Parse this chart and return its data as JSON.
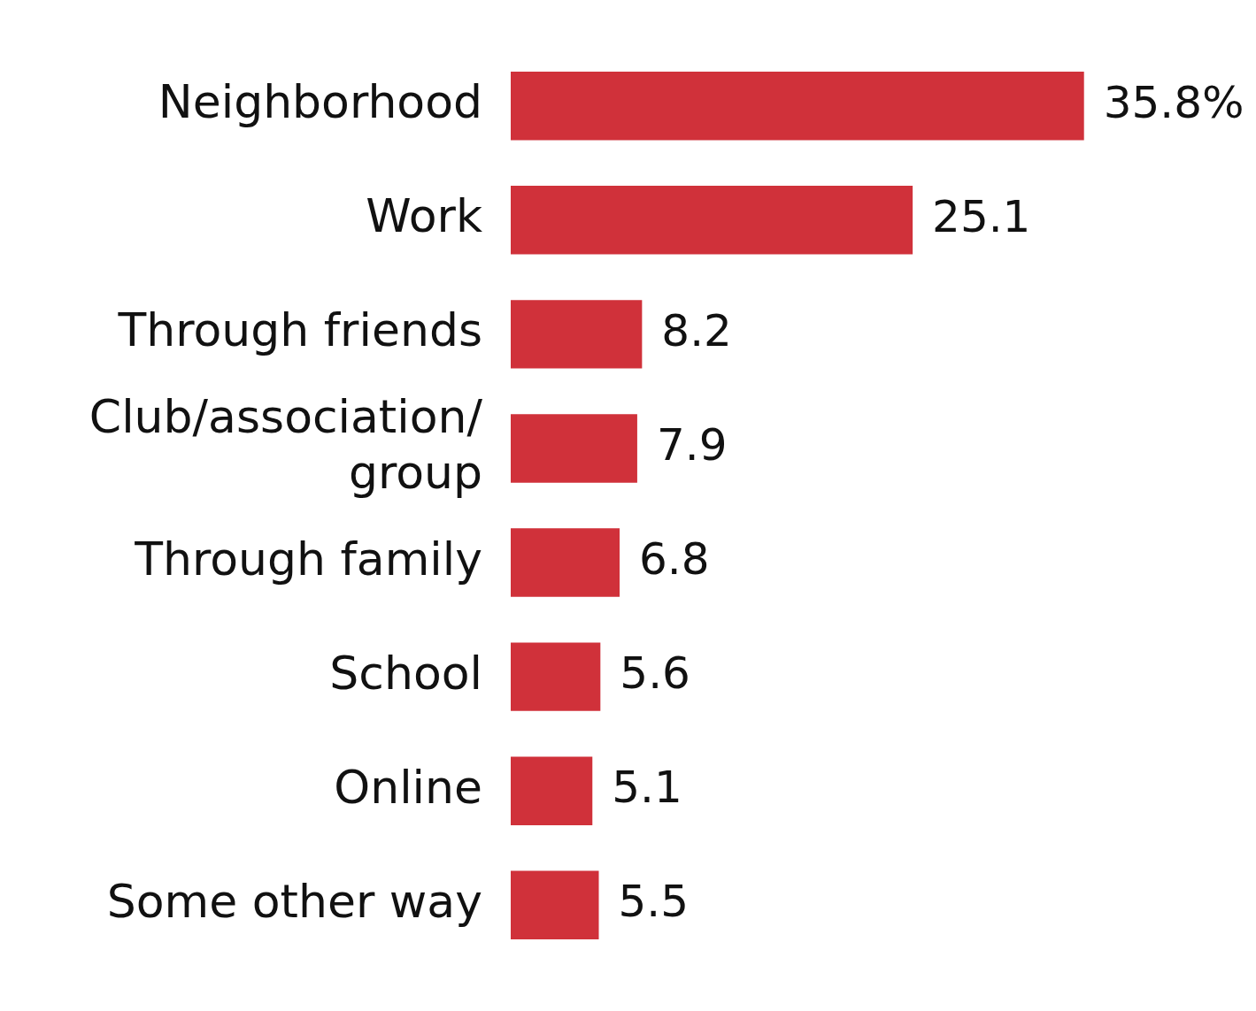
{
  "chart_data": {
    "type": "bar",
    "orientation": "horizontal",
    "categories": [
      "Neighborhood",
      "Work",
      "Through friends",
      "Club/association/group",
      "Through family",
      "School",
      "Online",
      "Some other way"
    ],
    "values": [
      35.8,
      25.1,
      8.2,
      7.9,
      6.8,
      5.6,
      5.1,
      5.5
    ],
    "value_labels": [
      "35.8%",
      "25.1",
      "8.2",
      "7.9",
      "6.8",
      "5.6",
      "5.1",
      "5.5"
    ],
    "color": "#d0313a",
    "grid": false,
    "legend": false
  }
}
